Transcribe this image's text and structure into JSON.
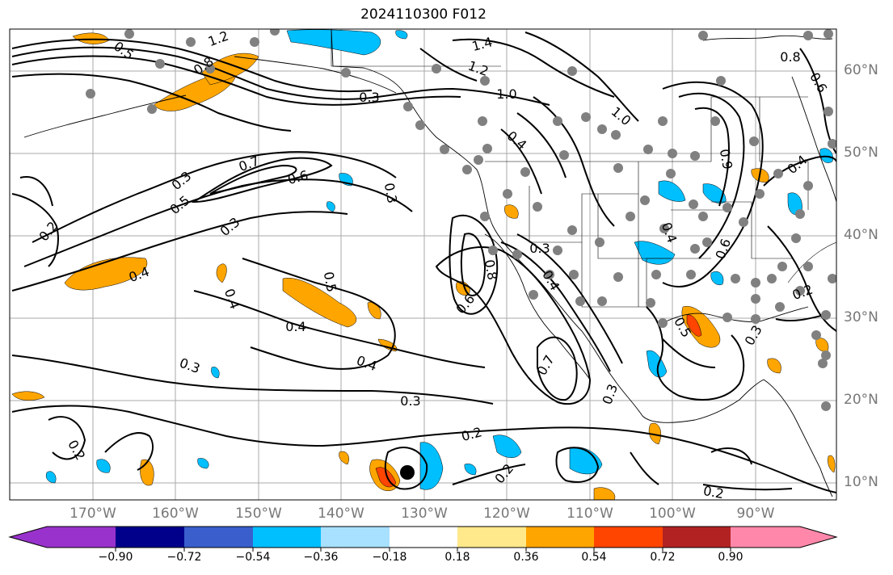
{
  "title": "2024110300 F012",
  "lon_labels": [
    "170°W",
    "160°W",
    "150°W",
    "140°W",
    "130°W",
    "120°W",
    "110°W",
    "100°W",
    "90°W"
  ],
  "lat_labels": [
    "60°N",
    "50°N",
    "40°N",
    "30°N",
    "20°N",
    "10°N"
  ],
  "contour_labels": [
    "1.2",
    "0.5",
    "0.8",
    "0.3",
    "1.4",
    "1.2",
    "1.0",
    "1.0",
    "0.8",
    "0.6",
    "0.4",
    "0.7",
    "0.6",
    "0.3",
    "0.5",
    "0.3",
    "0.2",
    "0.4",
    "0.5",
    "0.4",
    "0.4",
    "0.3",
    "0.4",
    "0.3",
    "0.2",
    "0.2",
    "0.3",
    "0.8",
    "0.6",
    "0.4",
    "0.7",
    "0.3",
    "0.2",
    "0.9",
    "0.4",
    "0.3",
    "0.5",
    "0.2",
    "0.3",
    "0.2",
    "0.4",
    "0.6"
  ],
  "colorbar": {
    "ticks": [
      "−0.90",
      "−0.72",
      "−0.54",
      "−0.36",
      "−0.18",
      "0.18",
      "0.36",
      "0.54",
      "0.72",
      "0.90"
    ],
    "colors": [
      "#9932cc",
      "#00008b",
      "#3a5fcd",
      "#00bfff",
      "#a8e0ff",
      "#ffffff",
      "#ffe98a",
      "#ffa500",
      "#ff4500",
      "#b22222",
      "#ff88aa"
    ]
  },
  "fill_colors": {
    "orange": "#ffa500",
    "cyan": "#00bfff",
    "red": "#ff4500",
    "blue": "#3a5fcd",
    "station": "#808080"
  }
}
